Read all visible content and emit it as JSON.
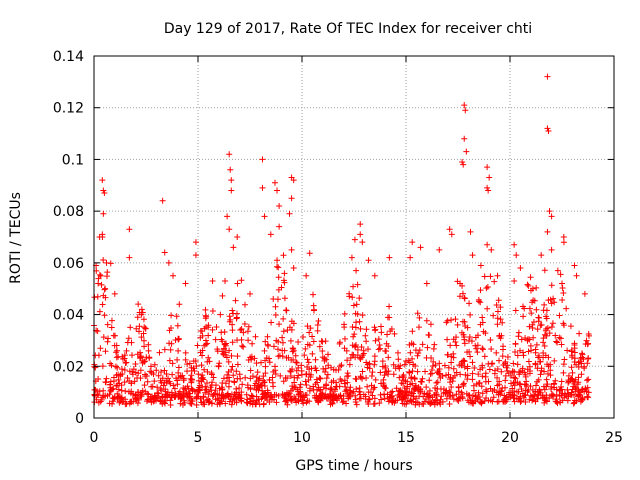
{
  "chart_data": {
    "type": "scatter",
    "title": "Day 129 of 2017, Rate Of TEC Index for receiver chti",
    "xlabel": "GPS time / hours",
    "ylabel": "ROTI / TECUs",
    "xlim": [
      0,
      25
    ],
    "ylim": [
      0,
      0.14
    ],
    "x_ticks": [
      0,
      5,
      10,
      15,
      20,
      25
    ],
    "y_ticks": [
      0,
      0.02,
      0.04,
      0.06,
      0.08,
      0.1,
      0.12,
      0.14
    ],
    "x_tick_labels": [
      "0",
      "5",
      "10",
      "15",
      "20",
      "25"
    ],
    "y_tick_labels": [
      "0",
      "0.02",
      "0.04",
      "0.06",
      "0.08",
      "0.1",
      "0.12",
      "0.14"
    ],
    "grid": true,
    "marker": "+",
    "series": [
      {
        "name": "ROTI",
        "color": "#ff0000",
        "x_range": [
          0,
          23.8
        ],
        "typical_range": [
          0.005,
          0.03
        ],
        "notable_points": [
          {
            "x": 0.1,
            "y": 0.059
          },
          {
            "x": 0.2,
            "y": 0.052
          },
          {
            "x": 0.4,
            "y": 0.092
          },
          {
            "x": 0.45,
            "y": 0.088
          },
          {
            "x": 0.5,
            "y": 0.087
          },
          {
            "x": 0.45,
            "y": 0.079
          },
          {
            "x": 0.4,
            "y": 0.071
          },
          {
            "x": 0.6,
            "y": 0.06
          },
          {
            "x": 1.0,
            "y": 0.048
          },
          {
            "x": 1.7,
            "y": 0.073
          },
          {
            "x": 1.7,
            "y": 0.062
          },
          {
            "x": 2.3,
            "y": 0.042
          },
          {
            "x": 3.3,
            "y": 0.084
          },
          {
            "x": 3.4,
            "y": 0.064
          },
          {
            "x": 3.6,
            "y": 0.06
          },
          {
            "x": 3.8,
            "y": 0.055
          },
          {
            "x": 4.4,
            "y": 0.052
          },
          {
            "x": 4.9,
            "y": 0.068
          },
          {
            "x": 4.9,
            "y": 0.063
          },
          {
            "x": 5.7,
            "y": 0.053
          },
          {
            "x": 6.3,
            "y": 0.053
          },
          {
            "x": 6.4,
            "y": 0.078
          },
          {
            "x": 6.5,
            "y": 0.102
          },
          {
            "x": 6.55,
            "y": 0.096
          },
          {
            "x": 6.6,
            "y": 0.092
          },
          {
            "x": 6.6,
            "y": 0.088
          },
          {
            "x": 6.5,
            "y": 0.073
          },
          {
            "x": 6.7,
            "y": 0.066
          },
          {
            "x": 6.9,
            "y": 0.052
          },
          {
            "x": 7.5,
            "y": 0.048
          },
          {
            "x": 8.1,
            "y": 0.1
          },
          {
            "x": 8.1,
            "y": 0.089
          },
          {
            "x": 8.2,
            "y": 0.078
          },
          {
            "x": 8.7,
            "y": 0.091
          },
          {
            "x": 8.8,
            "y": 0.088
          },
          {
            "x": 8.9,
            "y": 0.082
          },
          {
            "x": 8.9,
            "y": 0.074
          },
          {
            "x": 8.5,
            "y": 0.071
          },
          {
            "x": 8.8,
            "y": 0.061
          },
          {
            "x": 9.5,
            "y": 0.093
          },
          {
            "x": 9.6,
            "y": 0.092
          },
          {
            "x": 9.5,
            "y": 0.085
          },
          {
            "x": 9.4,
            "y": 0.079
          },
          {
            "x": 9.5,
            "y": 0.065
          },
          {
            "x": 9.6,
            "y": 0.058
          },
          {
            "x": 10.2,
            "y": 0.055
          },
          {
            "x": 12.4,
            "y": 0.062
          },
          {
            "x": 12.6,
            "y": 0.057
          },
          {
            "x": 12.8,
            "y": 0.075
          },
          {
            "x": 12.8,
            "y": 0.071
          },
          {
            "x": 12.9,
            "y": 0.068
          },
          {
            "x": 13.2,
            "y": 0.061
          },
          {
            "x": 13.5,
            "y": 0.055
          },
          {
            "x": 14.2,
            "y": 0.062
          },
          {
            "x": 15.3,
            "y": 0.068
          },
          {
            "x": 15.2,
            "y": 0.062
          },
          {
            "x": 15.7,
            "y": 0.066
          },
          {
            "x": 16.0,
            "y": 0.052
          },
          {
            "x": 16.6,
            "y": 0.065
          },
          {
            "x": 17.1,
            "y": 0.073
          },
          {
            "x": 17.2,
            "y": 0.071
          },
          {
            "x": 17.6,
            "y": 0.052
          },
          {
            "x": 17.8,
            "y": 0.121
          },
          {
            "x": 17.85,
            "y": 0.119
          },
          {
            "x": 17.8,
            "y": 0.108
          },
          {
            "x": 17.9,
            "y": 0.103
          },
          {
            "x": 17.7,
            "y": 0.099
          },
          {
            "x": 17.75,
            "y": 0.098
          },
          {
            "x": 18.1,
            "y": 0.072
          },
          {
            "x": 18.2,
            "y": 0.063
          },
          {
            "x": 18.6,
            "y": 0.059
          },
          {
            "x": 18.9,
            "y": 0.097
          },
          {
            "x": 19.0,
            "y": 0.093
          },
          {
            "x": 18.9,
            "y": 0.089
          },
          {
            "x": 18.95,
            "y": 0.088
          },
          {
            "x": 18.9,
            "y": 0.067
          },
          {
            "x": 19.1,
            "y": 0.065
          },
          {
            "x": 19.4,
            "y": 0.055
          },
          {
            "x": 20.2,
            "y": 0.067
          },
          {
            "x": 20.3,
            "y": 0.063
          },
          {
            "x": 20.5,
            "y": 0.058
          },
          {
            "x": 20.2,
            "y": 0.053
          },
          {
            "x": 21.1,
            "y": 0.05
          },
          {
            "x": 21.5,
            "y": 0.063
          },
          {
            "x": 21.8,
            "y": 0.132
          },
          {
            "x": 21.8,
            "y": 0.112
          },
          {
            "x": 21.85,
            "y": 0.111
          },
          {
            "x": 21.9,
            "y": 0.08
          },
          {
            "x": 22.0,
            "y": 0.078
          },
          {
            "x": 21.8,
            "y": 0.072
          },
          {
            "x": 22.0,
            "y": 0.065
          },
          {
            "x": 22.3,
            "y": 0.057
          },
          {
            "x": 22.5,
            "y": 0.052
          },
          {
            "x": 23.1,
            "y": 0.059
          },
          {
            "x": 23.2,
            "y": 0.055
          },
          {
            "x": 23.6,
            "y": 0.048
          }
        ]
      }
    ]
  }
}
